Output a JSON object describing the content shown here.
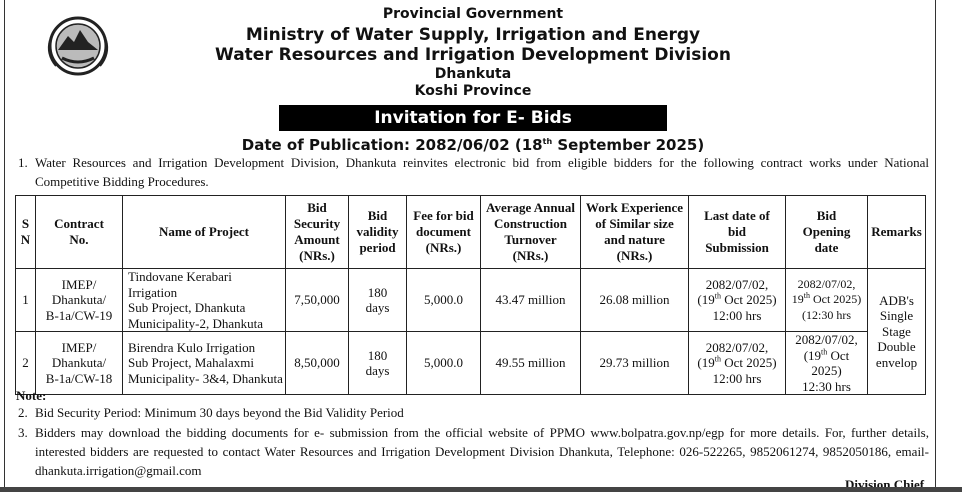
{
  "header": {
    "government": "Provincial Government",
    "ministry": "Ministry of Water Supply, Irrigation and Energy",
    "division": "Water Resources and Irrigation Development Division",
    "district": "Dhankuta",
    "province": "Koshi Province"
  },
  "banner": "Invitation for E- Bids",
  "publication": [
    "Date of Publication: 2082/06/02 (18",
    "th",
    " September 2025)"
  ],
  "intro": {
    "number": "1.",
    "text": "Water Resources and Irrigation Development Division, Dhankuta reinvites electronic bid from eligible bidders for the following contract works under National Competitive Bidding Procedures."
  },
  "table": {
    "header": [
      [
        "S",
        "N"
      ],
      [
        "Contract",
        "No."
      ],
      [
        "Name of Project"
      ],
      [
        "Bid",
        "Security",
        "Amount",
        "(NRs.)"
      ],
      [
        "Bid",
        "validity",
        "period"
      ],
      [
        "Fee for bid",
        "document",
        "(NRs.)"
      ],
      [
        "Average Annual",
        "Construction",
        "Turnover",
        "(NRs.)"
      ],
      [
        "Work Experience",
        "of Similar size",
        "and nature",
        "(NRs.)"
      ],
      [
        "Last date of",
        "bid",
        "Submission"
      ],
      [
        "Bid",
        "Opening",
        "date"
      ],
      [
        "Remarks"
      ]
    ],
    "rows": [
      [
        [
          "1"
        ],
        [
          "IMEP/",
          "Dhankuta/",
          "B-1a/CW-19"
        ],
        [
          "Tindovane Kerabari Irrigation",
          "Sub Project, Dhankuta",
          "Municipality-2, Dhankuta"
        ],
        [
          "7,50,000"
        ],
        [
          "180",
          "days"
        ],
        [
          "5,000.0"
        ],
        [
          "43.47 million"
        ],
        [
          "26.08 million"
        ],
        [
          "2082/07/02,",
          [
            "(19",
            "th",
            " Oct 2025)"
          ],
          "12:00 hrs"
        ],
        [
          "2082/07/02,",
          [
            "19",
            "th",
            " Oct 2025)"
          ],
          "(12:30 hrs"
        ]
      ],
      [
        [
          "2"
        ],
        [
          "IMEP/",
          "Dhankuta/",
          "B-1a/CW-18"
        ],
        [
          "Birendra Kulo Irrigation",
          "Sub Project, Mahalaxmi",
          "Municipality- 3&4, Dhankuta"
        ],
        [
          "8,50,000"
        ],
        [
          "180",
          "days"
        ],
        [
          "5,000.0"
        ],
        [
          "49.55 million"
        ],
        [
          "29.73 million"
        ],
        [
          "2082/07/02,",
          [
            "(19",
            "th",
            " Oct 2025)"
          ],
          "12:00 hrs"
        ],
        [
          "2082/07/02,",
          [
            "(19",
            "th",
            " Oct 2025)"
          ],
          "12:30 hrs"
        ]
      ]
    ],
    "remarks": [
      "ADB's",
      "Single",
      "Stage",
      "Double",
      "envelop"
    ]
  },
  "notes": {
    "title": "Note:",
    "items": [
      {
        "number": "2.",
        "text": "Bid Security Period: Minimum 30 days beyond the Bid Validity Period"
      },
      {
        "number": "3.",
        "text": "Bidders may download the bidding documents for e- submission from the official website of PPMO www.bolpatra.gov.np/egp for more details. For, further details, interested bidders are requested to contact Water Resources and Irrigation Development Division Dhankuta, Telephone: 026-522265, 9852061274, 9852050186, email- dhankuta.irrigation@gmail.com"
      }
    ]
  },
  "signature": "Division Chief"
}
